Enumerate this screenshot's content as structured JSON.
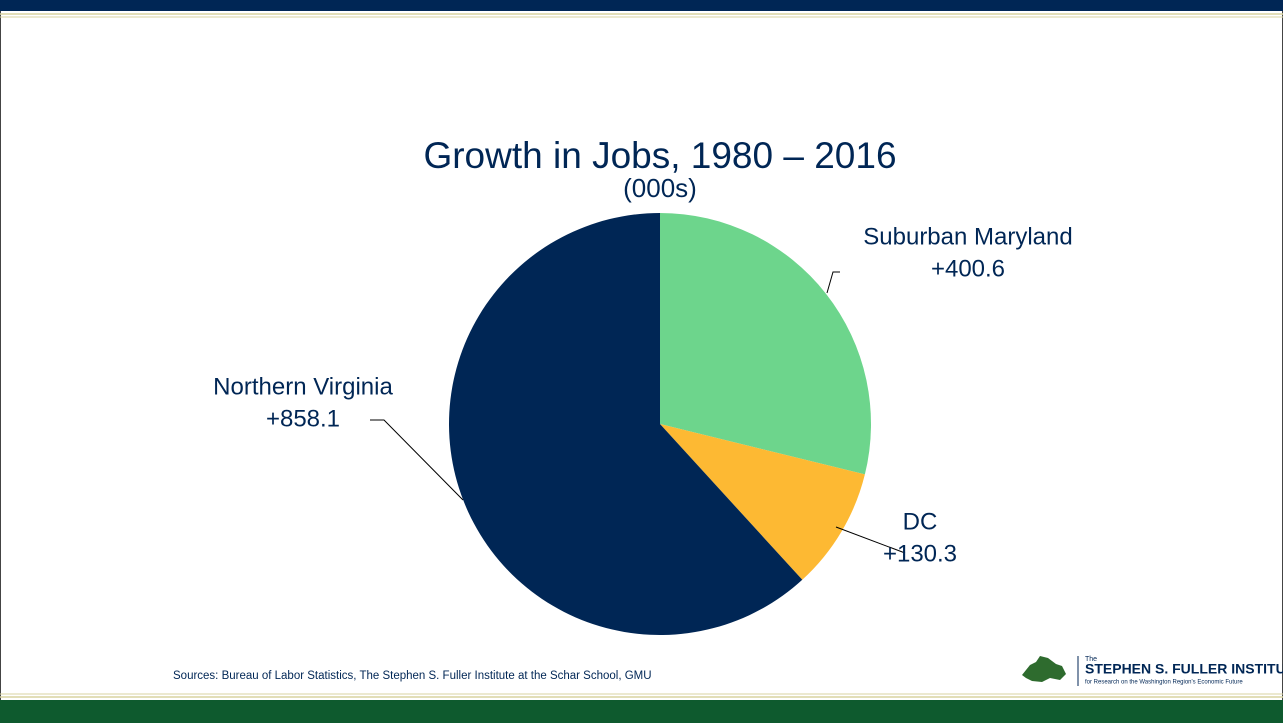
{
  "chart_data": {
    "type": "pie",
    "title": "Growth in Jobs, 1980 – 2016",
    "subtitle": "(000s)",
    "categories": [
      "Suburban Maryland",
      "DC",
      "Northern Virginia"
    ],
    "values": [
      400.6,
      130.3,
      858.1
    ],
    "value_labels": [
      "+400.6",
      "+130.3",
      "+858.1"
    ],
    "colors": [
      "#6dd58c",
      "#fdb933",
      "#002655"
    ]
  },
  "source": "Sources: Bureau of Labor Statistics, The Stephen S. Fuller Institute at the Schar School, GMU",
  "logo": {
    "the": "The",
    "name": "STEPHEN S. FULLER INSTITUTE",
    "tagline": "for Research on the Washington Region's Economic Future"
  }
}
